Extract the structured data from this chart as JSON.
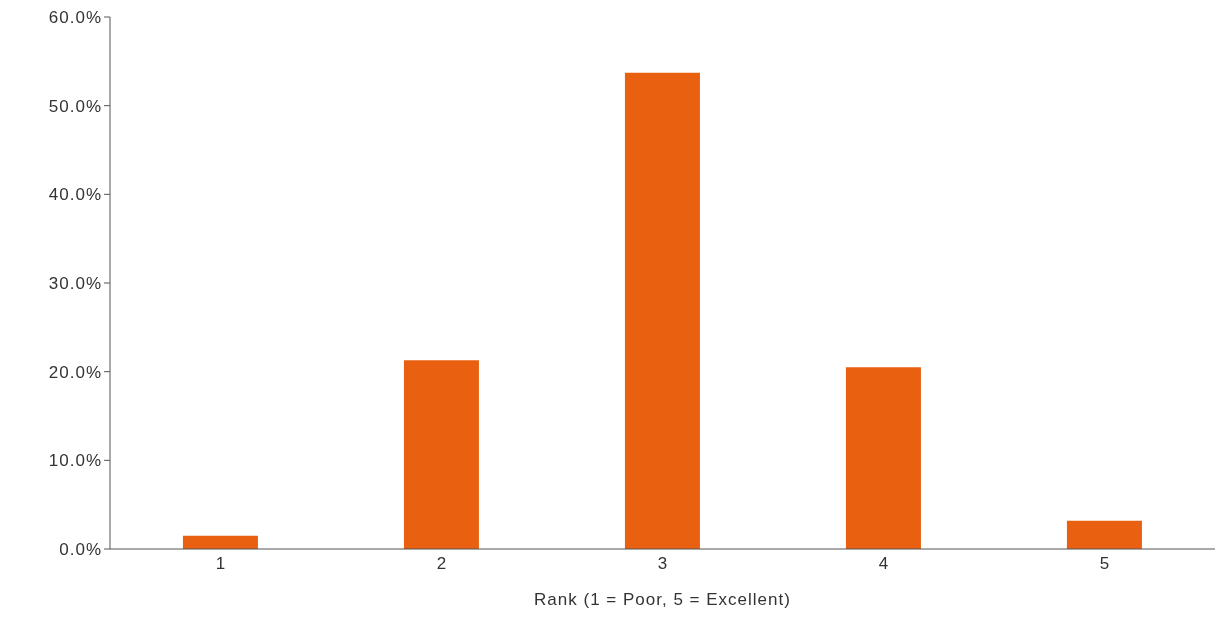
{
  "chart_data": {
    "type": "bar",
    "xlabel": "Rank (1 = Poor, 5 = Excellent)",
    "categories": [
      "1",
      "2",
      "3",
      "4",
      "5"
    ],
    "values": [
      1.5,
      21.3,
      53.7,
      20.5,
      3.2
    ],
    "color": "#e86010",
    "ylim": [
      0,
      60
    ],
    "yticks": [
      {
        "value": 0,
        "label": "0.0%"
      },
      {
        "value": 10,
        "label": "10.0%"
      },
      {
        "value": 20,
        "label": "20.0%"
      },
      {
        "value": 30,
        "label": "30.0%"
      },
      {
        "value": 40,
        "label": "40.0%"
      },
      {
        "value": 50,
        "label": "50.0%"
      },
      {
        "value": 60,
        "label": "60.0%"
      }
    ],
    "grid": false,
    "legend": false
  }
}
